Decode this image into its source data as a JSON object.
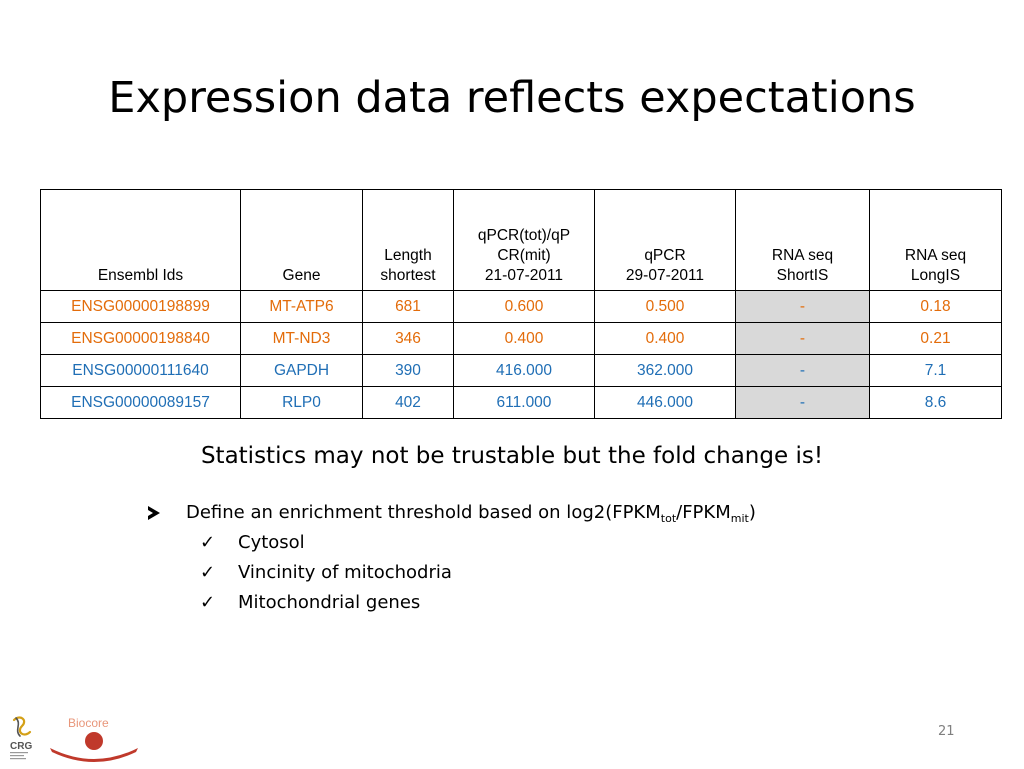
{
  "title": "Expression data reflects expectations",
  "table": {
    "headers": [
      [
        "Ensembl Ids"
      ],
      [
        "Gene"
      ],
      [
        "Length",
        "shortest"
      ],
      [
        "qPCR(tot)/qP",
        "CR(mit)",
        "21-07-2011"
      ],
      [
        "qPCR",
        "29-07-2011"
      ],
      [
        "RNA seq",
        "ShortIS"
      ],
      [
        "RNA seq",
        "LongIS"
      ]
    ],
    "rows": [
      [
        "ENSG00000198899",
        "MT-ATP6",
        "681",
        "0.600",
        "0.500",
        "-",
        "0.18"
      ],
      [
        "ENSG00000198840",
        "MT-ND3",
        "346",
        "0.400",
        "0.400",
        "-",
        "0.21"
      ],
      [
        "ENSG00000111640",
        "GAPDH",
        "390",
        "416.000",
        "362.000",
        "-",
        "7.1"
      ],
      [
        "ENSG00000089157",
        "RLP0",
        "402",
        "611.000",
        "446.000",
        "-",
        "8.6"
      ]
    ],
    "row_colors": [
      "#e36c0a",
      "#e36c0a",
      "#1f6eb5",
      "#1f6eb5"
    ],
    "shaded_column_color": "#d9d9d9"
  },
  "subtitle": "Statistics may not be trustable but the fold change is!",
  "bullets": {
    "main": {
      "icon": "arrow-bullet-icon",
      "text_before": "Define an enrichment threshold based on log2(FPKM",
      "sub1": "tot",
      "text_middle": "/FPKM",
      "sub2": "mit",
      "text_after": ")"
    },
    "sub_icon": "checkmark-icon",
    "sub_check": "✓",
    "subs": [
      "Cytosol",
      "Vincinity of mitochodria",
      "Mitochondrial genes"
    ]
  },
  "logo": {
    "text": "Biocore",
    "org": "CRG",
    "text_color": "#e8967a",
    "accent": "#c0392b"
  },
  "page_number": "21"
}
